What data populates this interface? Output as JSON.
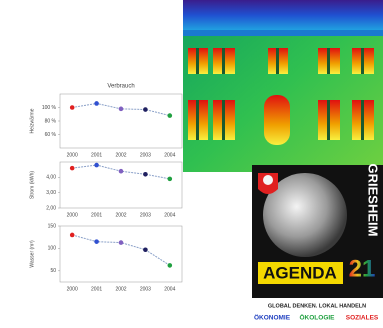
{
  "chart_data": [
    {
      "type": "line",
      "title": "Verbrauch",
      "y_label": "Heizwärme",
      "categories": [
        "2000",
        "2001",
        "2002",
        "2003",
        "2004"
      ],
      "series": [
        {
          "color": "#8aa0c8",
          "values": [
            100,
            106,
            98,
            97,
            88
          ]
        }
      ],
      "point_colors": [
        "#e02020",
        "#3050d0",
        "#8060c0",
        "#202060",
        "#20a040"
      ],
      "ylim": [
        40,
        120
      ],
      "yticks": [
        {
          "value": 60,
          "label": "60 %"
        },
        {
          "value": 80,
          "label": "80 %"
        },
        {
          "value": 100,
          "label": "100 %"
        }
      ],
      "grid": false
    },
    {
      "type": "line",
      "y_label": "Strom (kWh)",
      "categories": [
        "2000",
        "2001",
        "2002",
        "2003",
        "2004"
      ],
      "series": [
        {
          "color": "#8aa0c8",
          "values": [
            4.6,
            4.8,
            4.4,
            4.2,
            3.9
          ]
        }
      ],
      "point_colors": [
        "#e02020",
        "#3050d0",
        "#8060c0",
        "#202060",
        "#20a040"
      ],
      "ylim": [
        2,
        5
      ],
      "yticks": [
        {
          "value": 2,
          "label": "2,00"
        },
        {
          "value": 3,
          "label": "3,00"
        },
        {
          "value": 4,
          "label": "4,00"
        }
      ],
      "grid": false
    },
    {
      "type": "line",
      "y_label": "Wasser (m³)",
      "categories": [
        "2000",
        "2001",
        "2002",
        "2003",
        "2004"
      ],
      "series": [
        {
          "color": "#8aa0c8",
          "values": [
            130,
            115,
            113,
            97,
            62
          ]
        }
      ],
      "point_colors": [
        "#e02020",
        "#3050d0",
        "#8060c0",
        "#202060",
        "#20a040"
      ],
      "ylim": [
        25,
        150
      ],
      "yticks": [
        50,
        100,
        150
      ],
      "grid": false
    }
  ],
  "logo": {
    "name": "GRIESHEIM",
    "agenda": "AGENDA",
    "number": "21",
    "slogan": "GLOBAL DENKEN. LOKAL HANDELN",
    "pillars": [
      "ÖKONOMIE",
      "ÖKOLOGIE",
      "SOZIALES"
    ]
  }
}
